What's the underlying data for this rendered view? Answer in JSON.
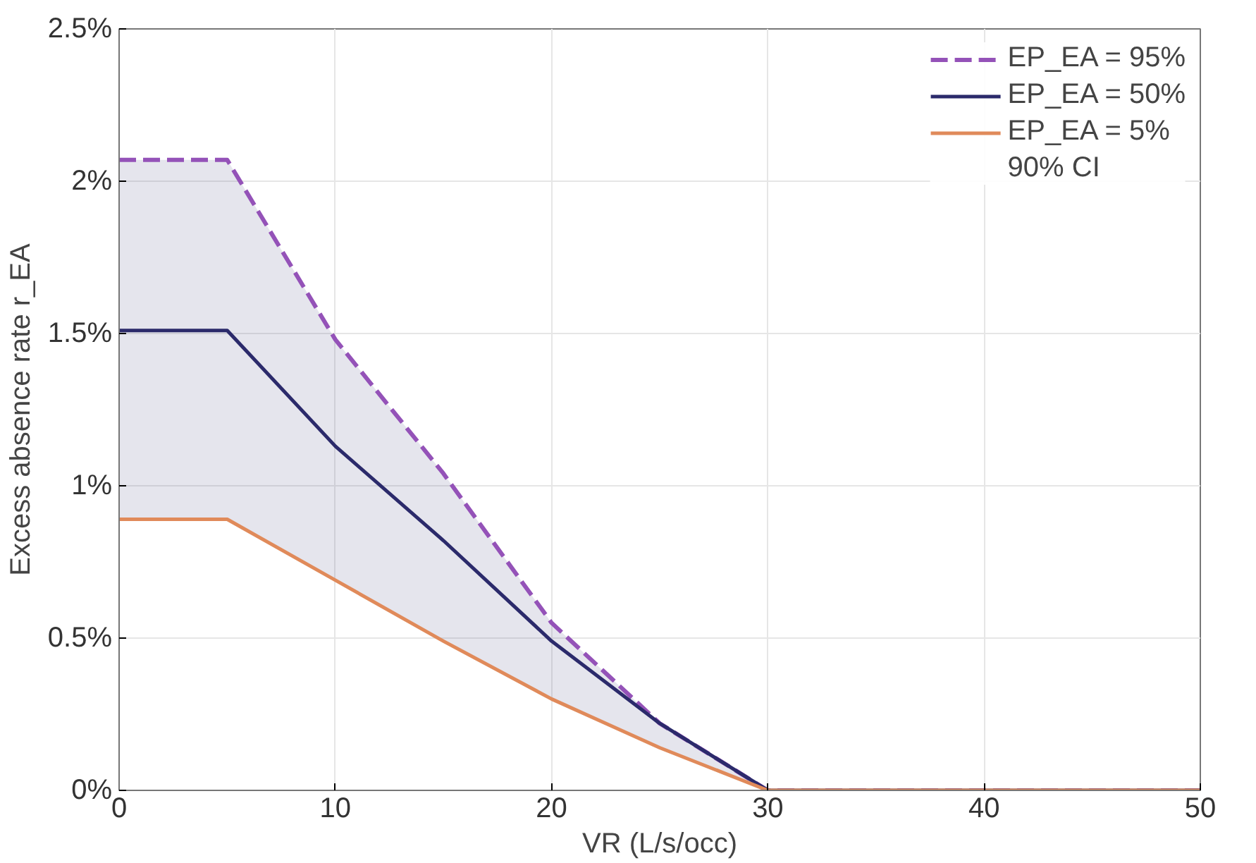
{
  "chart_data": {
    "type": "line",
    "xlabel": "VR (L/s/occ)",
    "ylabel": "Excess absence rate r_EA",
    "x": [
      0,
      5,
      10,
      15,
      20,
      25,
      30,
      50
    ],
    "line_style": "solid",
    "series": [
      {
        "name": "EP_EA = 95%",
        "color": "#9452b8",
        "line_style": "dashed",
        "values": [
          2.07,
          2.07,
          1.48,
          1.04,
          0.55,
          0.22,
          0,
          0
        ]
      },
      {
        "name": "EP_EA = 50%",
        "color": "#2b2a6b",
        "values": [
          1.51,
          1.51,
          1.13,
          0.82,
          0.49,
          0.22,
          0,
          0
        ],
        "lower": [
          0.89,
          0.89,
          0.69,
          0.49,
          0.3,
          0.14,
          0,
          0
        ],
        "upper": [
          2.07,
          2.07,
          1.48,
          1.04,
          0.55,
          0.22,
          0,
          0
        ]
      },
      {
        "name": "EP_EA = 5%",
        "color": "#e08a5a",
        "values": [
          0.89,
          0.89,
          0.69,
          0.49,
          0.3,
          0.14,
          0,
          0
        ]
      }
    ],
    "annotations": [
      "90% CI"
    ],
    "xlim": [
      0,
      50
    ],
    "xticks": [
      0,
      10,
      20,
      30,
      40,
      50
    ],
    "ylim": [
      0,
      2.5
    ],
    "yticks": [
      {
        "value": 0,
        "label": "0%"
      },
      {
        "value": 0.5,
        "label": "0.5%"
      },
      {
        "value": 1,
        "label": "1%"
      },
      {
        "value": 1.5,
        "label": "1.5%"
      },
      {
        "value": 2,
        "label": "2%"
      },
      {
        "value": 2.5,
        "label": "2.5%"
      }
    ],
    "grid": true,
    "legend": "top right"
  }
}
